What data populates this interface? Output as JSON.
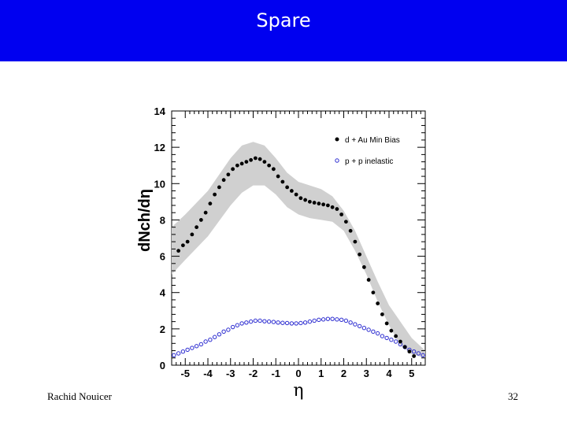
{
  "slide": {
    "title": "Spare",
    "footer_left": "Rachid Nouicer",
    "page_number": "32"
  },
  "colors": {
    "banner": "#0000f0",
    "band": "#d0d0d0",
    "dAu_marker": "#000000",
    "pp_marker": "#2a2ad0"
  },
  "chart_data": {
    "type": "scatter",
    "xlabel": "η",
    "ylabel": "dNch/dη",
    "xlim": [
      -5.6,
      5.6
    ],
    "ylim": [
      0,
      14
    ],
    "x_ticks": [
      -5,
      -4,
      -3,
      -2,
      -1,
      0,
      1,
      2,
      3,
      4,
      5
    ],
    "y_ticks": [
      0,
      2,
      4,
      6,
      8,
      10,
      12,
      14
    ],
    "legend_position": "top-right",
    "series": [
      {
        "name": "d + Au Min Bias",
        "marker": "filled-circle",
        "x": [
          -5.3,
          -5.1,
          -4.9,
          -4.7,
          -4.5,
          -4.3,
          -4.1,
          -3.9,
          -3.7,
          -3.5,
          -3.3,
          -3.1,
          -2.9,
          -2.7,
          -2.5,
          -2.3,
          -2.1,
          -1.9,
          -1.7,
          -1.5,
          -1.3,
          -1.1,
          -0.9,
          -0.7,
          -0.5,
          -0.3,
          -0.1,
          0.1,
          0.3,
          0.5,
          0.7,
          0.9,
          1.1,
          1.3,
          1.5,
          1.7,
          1.9,
          2.1,
          2.3,
          2.5,
          2.7,
          2.9,
          3.1,
          3.3,
          3.5,
          3.7,
          3.9,
          4.1,
          4.3,
          4.5,
          4.7,
          4.9,
          5.1
        ],
        "y": [
          6.3,
          6.6,
          6.8,
          7.2,
          7.6,
          8.0,
          8.4,
          8.9,
          9.4,
          9.8,
          10.2,
          10.5,
          10.8,
          11.0,
          11.1,
          11.2,
          11.3,
          11.4,
          11.35,
          11.2,
          11.0,
          10.8,
          10.4,
          10.1,
          9.8,
          9.6,
          9.4,
          9.2,
          9.1,
          9.0,
          8.95,
          8.9,
          8.85,
          8.8,
          8.7,
          8.6,
          8.3,
          7.9,
          7.4,
          6.8,
          6.1,
          5.4,
          4.7,
          4.0,
          3.4,
          2.8,
          2.3,
          1.9,
          1.6,
          1.3,
          1.0,
          0.75,
          0.5
        ]
      },
      {
        "name": "p + p inelastic",
        "marker": "open-circle",
        "x": [
          -5.5,
          -5.3,
          -5.1,
          -4.9,
          -4.7,
          -4.5,
          -4.3,
          -4.1,
          -3.9,
          -3.7,
          -3.5,
          -3.3,
          -3.1,
          -2.9,
          -2.7,
          -2.5,
          -2.3,
          -2.1,
          -1.9,
          -1.7,
          -1.5,
          -1.3,
          -1.1,
          -0.9,
          -0.7,
          -0.5,
          -0.3,
          -0.1,
          0.1,
          0.3,
          0.5,
          0.7,
          0.9,
          1.1,
          1.3,
          1.5,
          1.7,
          1.9,
          2.1,
          2.3,
          2.5,
          2.7,
          2.9,
          3.1,
          3.3,
          3.5,
          3.7,
          3.9,
          4.1,
          4.3,
          4.5,
          4.7,
          4.9,
          5.1,
          5.3,
          5.5
        ],
        "y": [
          0.55,
          0.65,
          0.75,
          0.85,
          0.95,
          1.05,
          1.15,
          1.3,
          1.4,
          1.55,
          1.7,
          1.85,
          1.95,
          2.1,
          2.2,
          2.3,
          2.35,
          2.4,
          2.45,
          2.45,
          2.42,
          2.4,
          2.38,
          2.35,
          2.33,
          2.32,
          2.3,
          2.3,
          2.32,
          2.35,
          2.4,
          2.45,
          2.5,
          2.52,
          2.55,
          2.55,
          2.52,
          2.5,
          2.45,
          2.35,
          2.25,
          2.15,
          2.05,
          1.95,
          1.85,
          1.75,
          1.6,
          1.5,
          1.4,
          1.3,
          1.15,
          1.0,
          0.85,
          0.75,
          0.65,
          0.55
        ]
      }
    ],
    "band": {
      "x": [
        -5.6,
        -5.0,
        -4.0,
        -3.0,
        -2.5,
        -2.0,
        -1.5,
        -1.0,
        -0.5,
        0.0,
        0.5,
        1.0,
        1.5,
        2.0,
        2.5,
        3.0,
        3.5,
        4.0,
        4.5,
        5.0,
        5.6
      ],
      "upper": [
        7.6,
        8.3,
        9.6,
        11.4,
        12.1,
        12.3,
        12.1,
        11.4,
        10.6,
        10.1,
        9.9,
        9.7,
        9.3,
        8.5,
        7.4,
        6.0,
        4.6,
        3.3,
        2.4,
        1.5,
        0.8
      ],
      "lower": [
        5.0,
        5.8,
        7.1,
        8.8,
        9.5,
        9.9,
        9.9,
        9.4,
        8.7,
        8.3,
        8.1,
        8.0,
        7.9,
        7.4,
        6.3,
        5.0,
        3.5,
        2.2,
        1.1,
        0.6,
        0.4
      ]
    }
  }
}
